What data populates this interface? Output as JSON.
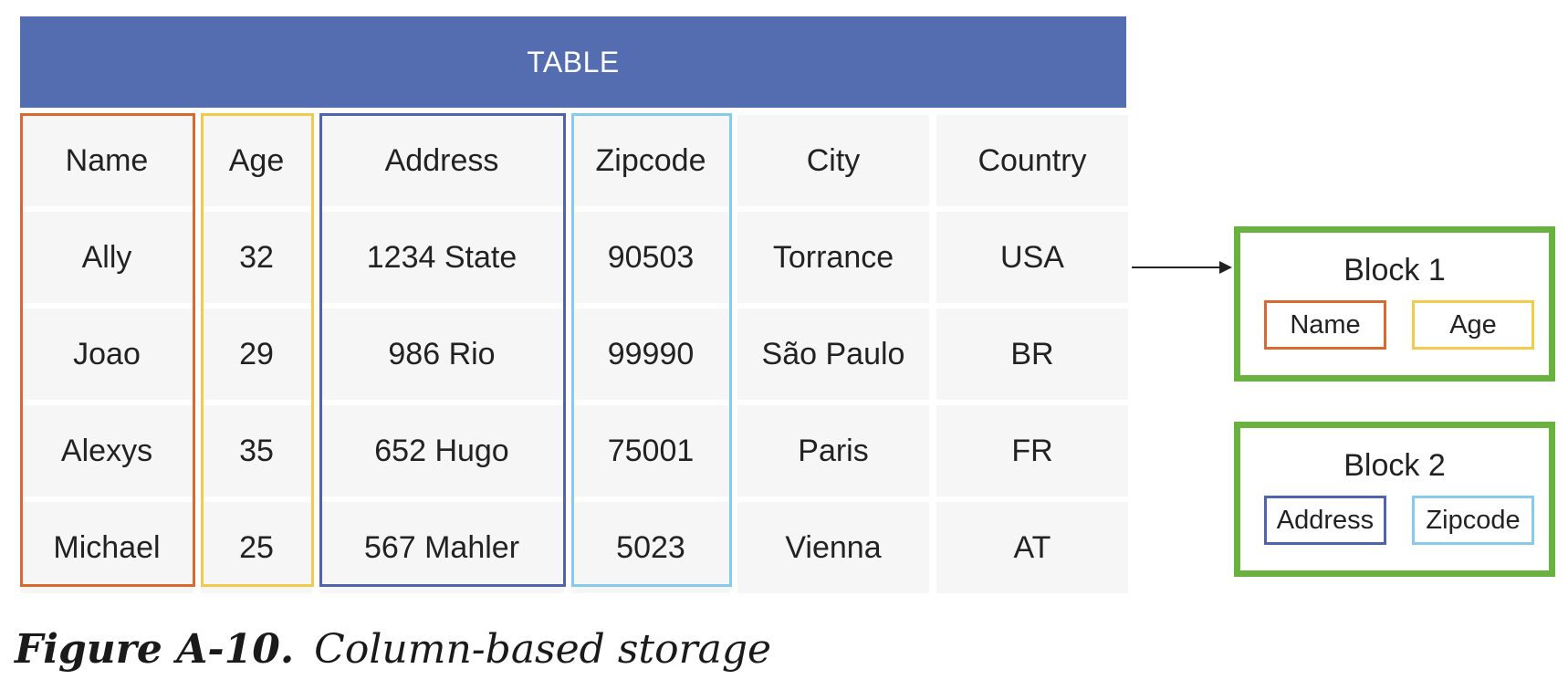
{
  "table": {
    "title": "TABLE",
    "columns": [
      "Name",
      "Age",
      "Address",
      "Zipcode",
      "City",
      "Country"
    ],
    "rows": [
      [
        "Ally",
        "32",
        "1234 State",
        "90503",
        "Torrance",
        "USA"
      ],
      [
        "Joao",
        "29",
        "986 Rio",
        "99990",
        "São Paulo",
        "BR"
      ],
      [
        "Alexys",
        "35",
        "652 Hugo",
        "75001",
        "Paris",
        "FR"
      ],
      [
        "Michael",
        "25",
        "567 Mahler",
        "5023",
        "Vienna",
        "AT"
      ]
    ],
    "header_color": "#546db1",
    "column_outline_colors": {
      "Name": "#d9692f",
      "Age": "#f2cb4a",
      "Address": "#4f64ad",
      "Zipcode": "#86cbee"
    }
  },
  "blocks": [
    {
      "title": "Block 1",
      "border_color": "#6ab23f",
      "chips": [
        {
          "label": "Name",
          "color": "#d9692f"
        },
        {
          "label": "Age",
          "color": "#f2cb4a"
        }
      ]
    },
    {
      "title": "Block 2",
      "border_color": "#6ab23f",
      "chips": [
        {
          "label": "Address",
          "color": "#4f64ad"
        },
        {
          "label": "Zipcode",
          "color": "#86cbee"
        }
      ]
    }
  ],
  "arrow": {
    "icon": "arrow-right-icon",
    "from": "table",
    "to": "Block 1"
  },
  "caption": {
    "label": "Figure A-10.",
    "text": "Column-based storage"
  }
}
